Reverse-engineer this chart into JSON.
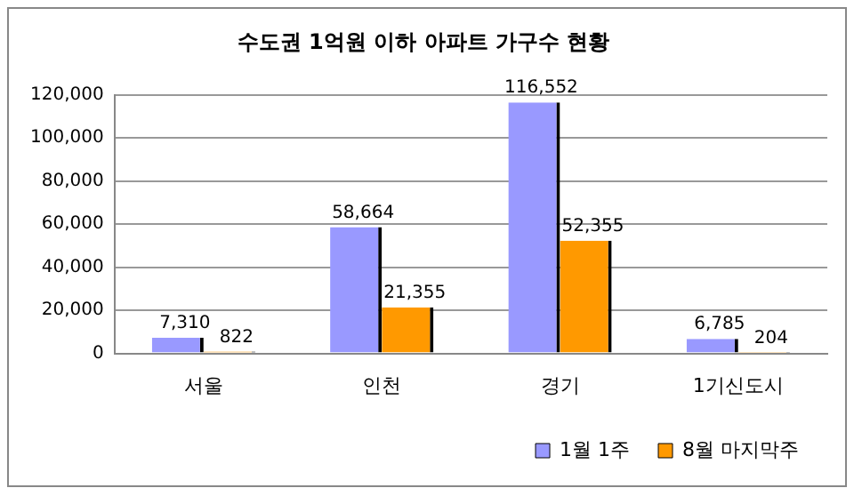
{
  "chart_data": {
    "type": "bar",
    "title": "수도권 1억원 이하 아파트 가구수 현황",
    "categories": [
      "서울",
      "인천",
      "경기",
      "1기신도시"
    ],
    "series": [
      {
        "name": "1월 1주",
        "color": "#9999ff",
        "values": [
          7310,
          58664,
          116552,
          6785
        ],
        "value_labels": [
          "7,310",
          "58,664",
          "116,552",
          "6,785"
        ]
      },
      {
        "name": "8월 마지막주",
        "color": "#ff9900",
        "values": [
          822,
          21355,
          52355,
          204
        ],
        "value_labels": [
          "822",
          "21,355",
          "52,355",
          "204"
        ]
      }
    ],
    "ylim": [
      0,
      120000
    ],
    "yticks": [
      {
        "value": 0,
        "label": "0"
      },
      {
        "value": 20000,
        "label": "20,000"
      },
      {
        "value": 40000,
        "label": "40,000"
      },
      {
        "value": 60000,
        "label": "60,000"
      },
      {
        "value": 80000,
        "label": "80,000"
      },
      {
        "value": 100000,
        "label": "100,000"
      },
      {
        "value": 120000,
        "label": "120,000"
      }
    ],
    "grid": "y",
    "legend": "bottom right"
  }
}
